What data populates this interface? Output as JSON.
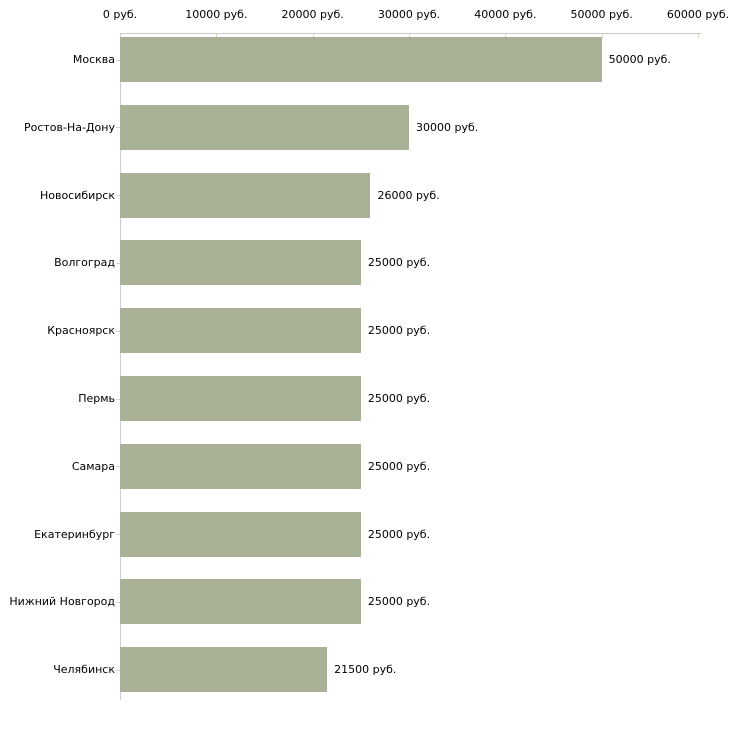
{
  "chart_data": {
    "type": "bar",
    "orientation": "horizontal",
    "title": "",
    "xlabel": "",
    "ylabel": "",
    "categories": [
      "Москва",
      "Ростов-На-Дону",
      "Новосибирск",
      "Волгоград",
      "Красноярск",
      "Пермь",
      "Самара",
      "Екатеринбург",
      "Нижний Новгород",
      "Челябинск"
    ],
    "values": [
      50000,
      30000,
      26000,
      25000,
      25000,
      25000,
      25000,
      25000,
      25000,
      21500
    ],
    "value_labels": [
      "50000 руб.",
      "30000 руб.",
      "26000 руб.",
      "25000 руб.",
      "25000 руб.",
      "25000 руб.",
      "25000 руб.",
      "25000 руб.",
      "25000 руб.",
      "21500 руб."
    ],
    "xlim": [
      0,
      60000
    ],
    "x_ticks": [
      0,
      10000,
      20000,
      30000,
      40000,
      50000,
      60000
    ],
    "x_tick_labels": [
      "0 руб.",
      "10000 руб.",
      "20000 руб.",
      "30000 руб.",
      "40000 руб.",
      "50000 руб.",
      "60000 руб."
    ],
    "unit": "руб.",
    "grid": false,
    "legend": false,
    "axis_position": "top",
    "colors": {
      "bar": "#a9b296",
      "axis_line": "#cccccc",
      "tick_mark": "#d5d7ba",
      "text": "#000000",
      "background": "#ffffff"
    }
  }
}
